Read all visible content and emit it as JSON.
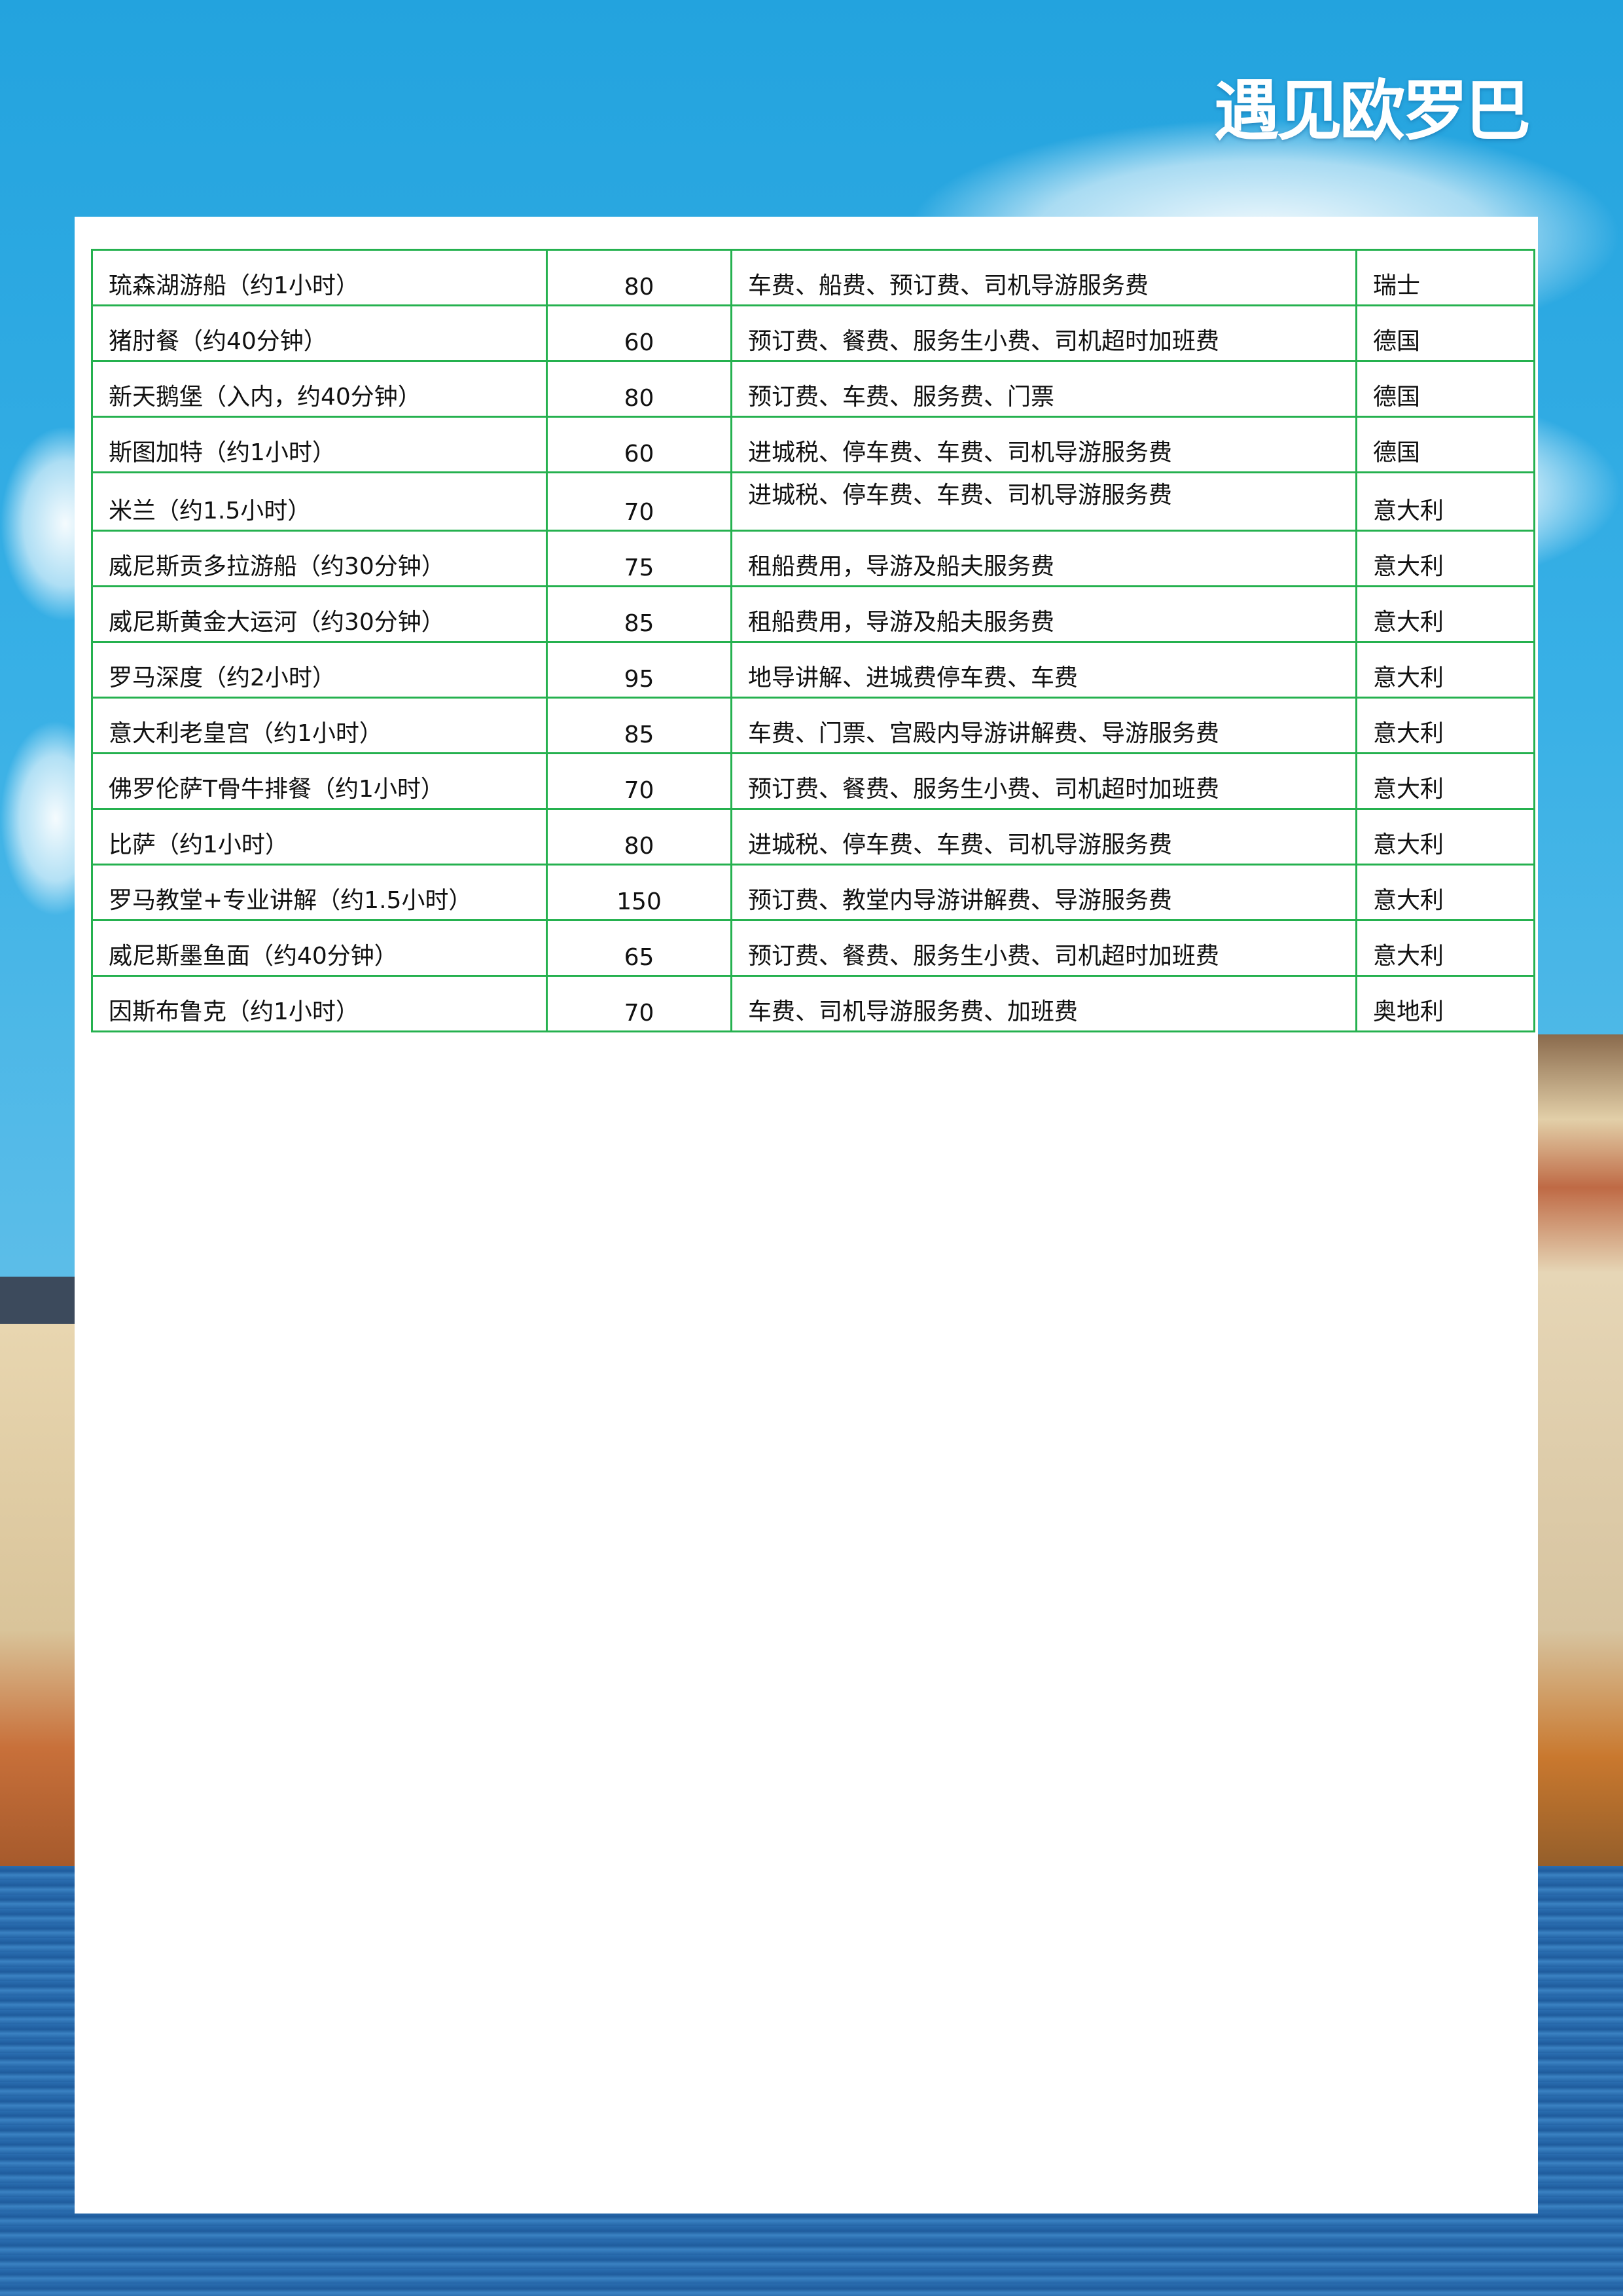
{
  "logo": {
    "text": "遇见欧罗巴"
  },
  "colors": {
    "table_border": "#25b14f",
    "sky": "#23a3de",
    "panel": "#ffffff"
  },
  "table": {
    "rows": [
      {
        "name": "琉森湖游船（约1小时）",
        "price": "80",
        "includes": "车费、船费、预订费、司机导游服务费",
        "country": "瑞士"
      },
      {
        "name": "猪肘餐（约40分钟）",
        "price": "60",
        "includes": "预订费、餐费、服务生小费、司机超时加班费",
        "country": "德国"
      },
      {
        "name": "新天鹅堡（入内，约40分钟）",
        "price": "80",
        "includes": "预订费、车费、服务费、门票",
        "country": "德国"
      },
      {
        "name": "斯图加特（约1小时）",
        "price": "60",
        "includes": "进城税、停车费、车费、司机导游服务费",
        "country": "德国"
      },
      {
        "name": "米兰（约1.5小时）",
        "price": "70",
        "includes": "进城税、停车费、车费、司机导游服务费",
        "country": "意大利"
      },
      {
        "name": "威尼斯贡多拉游船（约30分钟）",
        "price": "75",
        "includes": "租船费用，导游及船夫服务费",
        "country": "意大利"
      },
      {
        "name": "威尼斯黄金大运河（约30分钟）",
        "price": "85",
        "includes": "租船费用，导游及船夫服务费",
        "country": "意大利"
      },
      {
        "name": "罗马深度（约2小时）",
        "price": "95",
        "includes": "地导讲解、进城费停车费、车费",
        "country": "意大利"
      },
      {
        "name": "意大利老皇宫（约1小时）",
        "price": "85",
        "includes": "车费、门票、宫殿内导游讲解费、导游服务费",
        "country": "意大利"
      },
      {
        "name": "佛罗伦萨T骨牛排餐（约1小时）",
        "price": "70",
        "includes": "预订费、餐费、服务生小费、司机超时加班费",
        "country": "意大利"
      },
      {
        "name": "比萨（约1小时）",
        "price": "80",
        "includes": "进城税、停车费、车费、司机导游服务费",
        "country": "意大利"
      },
      {
        "name": "罗马教堂+专业讲解（约1.5小时）",
        "price": "150",
        "includes": "预订费、教堂内导游讲解费、导游服务费",
        "country": "意大利"
      },
      {
        "name": "威尼斯墨鱼面（约40分钟）",
        "price": "65",
        "includes": "预订费、餐费、服务生小费、司机超时加班费",
        "country": "意大利"
      },
      {
        "name": "因斯布鲁克（约1小时）",
        "price": "70",
        "includes": "车费、司机导游服务费、加班费",
        "country": "奥地利"
      }
    ]
  }
}
